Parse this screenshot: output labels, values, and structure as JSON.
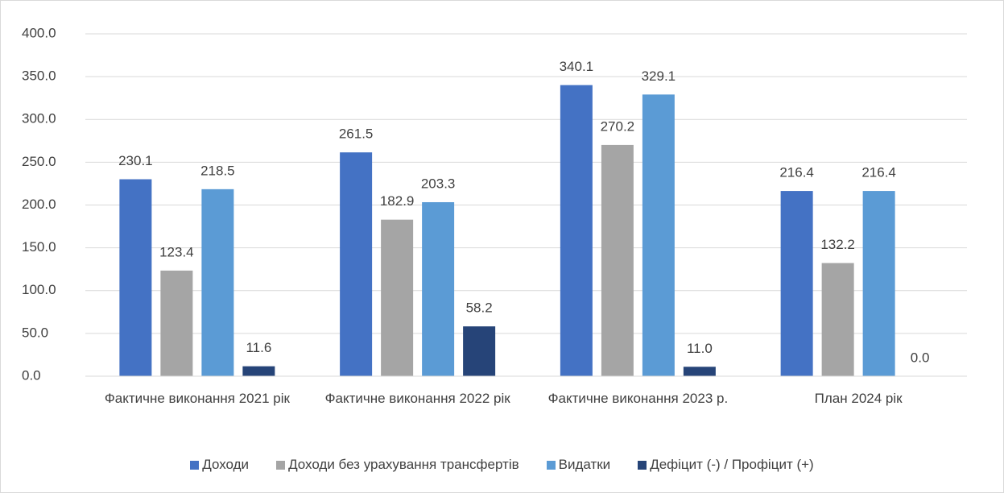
{
  "chart_data": {
    "type": "bar",
    "categories": [
      "Фактичне виконання 2021 рік",
      "Фактичне виконання 2022 рік",
      "Фактичне виконання 2023 р.",
      "План 2024 рік"
    ],
    "series": [
      {
        "name": "Доходи",
        "color": "#4472c4",
        "values": [
          230.1,
          261.5,
          340.1,
          216.4
        ]
      },
      {
        "name": "Доходи без урахування трансфертів",
        "color": "#a5a5a5",
        "values": [
          123.4,
          182.9,
          270.2,
          132.2
        ]
      },
      {
        "name": "Видатки",
        "color": "#5b9bd5",
        "values": [
          218.5,
          203.3,
          329.1,
          216.4
        ]
      },
      {
        "name": "Дефіцит (-) / Профіцит (+)",
        "color": "#264478",
        "values": [
          11.6,
          58.2,
          11.0,
          0.0
        ],
        "value_labels": [
          "11.6",
          "58.2",
          "11.0",
          "0.0"
        ]
      }
    ],
    "ylim": [
      0,
      400
    ],
    "yticks": [
      {
        "value": 0,
        "label": "0.0"
      },
      {
        "value": 50,
        "label": "50.0"
      },
      {
        "value": 100,
        "label": "100.0"
      },
      {
        "value": 150,
        "label": "150.0"
      },
      {
        "value": 200,
        "label": "200.0"
      },
      {
        "value": 250,
        "label": "250.0"
      },
      {
        "value": 300,
        "label": "300.0"
      },
      {
        "value": 350,
        "label": "350.0"
      },
      {
        "value": 400,
        "label": "400.0"
      }
    ],
    "grid": true,
    "legend": "bottom"
  }
}
